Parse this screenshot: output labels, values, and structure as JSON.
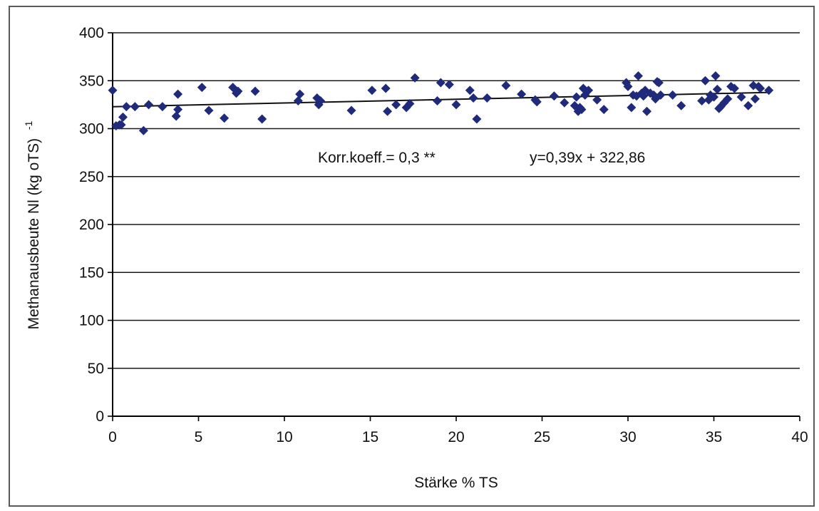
{
  "chart_data": {
    "type": "scatter",
    "xlabel": "Stärke % TS",
    "ylabel": "Methanausbeute Nl (kg oTS)",
    "ylabel_sup": "-1",
    "xlim": [
      0,
      40
    ],
    "ylim": [
      0,
      400
    ],
    "xticks": [
      0,
      5,
      10,
      15,
      20,
      25,
      30,
      35,
      40
    ],
    "yticks": [
      0,
      50,
      100,
      150,
      200,
      250,
      300,
      350,
      400
    ],
    "grid": "horizontal",
    "legend": "none",
    "marker": "diamond",
    "marker_color": "#1f2a7a",
    "annotations": {
      "correlation": "Korr.koeff.= 0,3 **",
      "equation": "y=0,39x + 322,86"
    },
    "trendline": {
      "slope": 0.39,
      "intercept": 322.86,
      "x_range": [
        0,
        38.3
      ]
    },
    "points": [
      [
        0,
        340
      ],
      [
        0.2,
        303
      ],
      [
        0.4,
        304
      ],
      [
        0.5,
        304
      ],
      [
        0.6,
        312
      ],
      [
        0.8,
        323
      ],
      [
        1.3,
        323
      ],
      [
        1.8,
        298
      ],
      [
        2.1,
        325
      ],
      [
        2.9,
        323
      ],
      [
        3.7,
        313
      ],
      [
        3.8,
        320
      ],
      [
        3.8,
        336
      ],
      [
        5.2,
        343
      ],
      [
        5.6,
        319
      ],
      [
        6.5,
        311
      ],
      [
        7.0,
        343
      ],
      [
        7.2,
        337
      ],
      [
        7.3,
        339
      ],
      [
        8.3,
        339
      ],
      [
        8.7,
        310
      ],
      [
        10.8,
        329
      ],
      [
        10.9,
        336
      ],
      [
        11.9,
        332
      ],
      [
        12.0,
        325
      ],
      [
        12.1,
        329
      ],
      [
        13.9,
        319
      ],
      [
        15.1,
        340
      ],
      [
        15.9,
        342
      ],
      [
        16.0,
        318
      ],
      [
        16.5,
        325
      ],
      [
        17.1,
        322
      ],
      [
        17.3,
        326
      ],
      [
        17.6,
        353
      ],
      [
        18.9,
        329
      ],
      [
        19.1,
        348
      ],
      [
        19.6,
        346
      ],
      [
        20.0,
        325
      ],
      [
        20.8,
        340
      ],
      [
        21.0,
        332
      ],
      [
        21.2,
        310
      ],
      [
        21.8,
        332
      ],
      [
        22.9,
        345
      ],
      [
        23.8,
        336
      ],
      [
        24.6,
        330
      ],
      [
        24.7,
        328
      ],
      [
        25.7,
        334
      ],
      [
        26.3,
        327
      ],
      [
        26.9,
        324
      ],
      [
        27.0,
        333
      ],
      [
        27.1,
        318
      ],
      [
        27.2,
        322
      ],
      [
        27.3,
        320
      ],
      [
        27.4,
        342
      ],
      [
        27.5,
        335
      ],
      [
        27.7,
        340
      ],
      [
        28.2,
        330
      ],
      [
        28.6,
        320
      ],
      [
        29.9,
        348
      ],
      [
        30.0,
        344
      ],
      [
        30.2,
        322
      ],
      [
        30.3,
        335
      ],
      [
        30.5,
        334
      ],
      [
        30.6,
        355
      ],
      [
        30.8,
        337
      ],
      [
        30.9,
        334
      ],
      [
        31.0,
        340
      ],
      [
        31.1,
        318
      ],
      [
        31.3,
        337
      ],
      [
        31.5,
        335
      ],
      [
        31.6,
        331
      ],
      [
        31.7,
        349
      ],
      [
        31.8,
        348
      ],
      [
        31.9,
        335
      ],
      [
        32.6,
        335
      ],
      [
        33.1,
        324
      ],
      [
        34.3,
        329
      ],
      [
        34.5,
        350
      ],
      [
        34.7,
        330
      ],
      [
        34.8,
        335
      ],
      [
        35.0,
        333
      ],
      [
        35.1,
        355
      ],
      [
        35.2,
        341
      ],
      [
        35.3,
        321
      ],
      [
        35.4,
        323
      ],
      [
        35.6,
        327
      ],
      [
        35.8,
        331
      ],
      [
        36.0,
        344
      ],
      [
        36.2,
        342
      ],
      [
        36.6,
        333
      ],
      [
        37.0,
        324
      ],
      [
        37.3,
        345
      ],
      [
        37.4,
        331
      ],
      [
        37.6,
        344
      ],
      [
        37.7,
        342
      ],
      [
        38.2,
        340
      ]
    ]
  }
}
